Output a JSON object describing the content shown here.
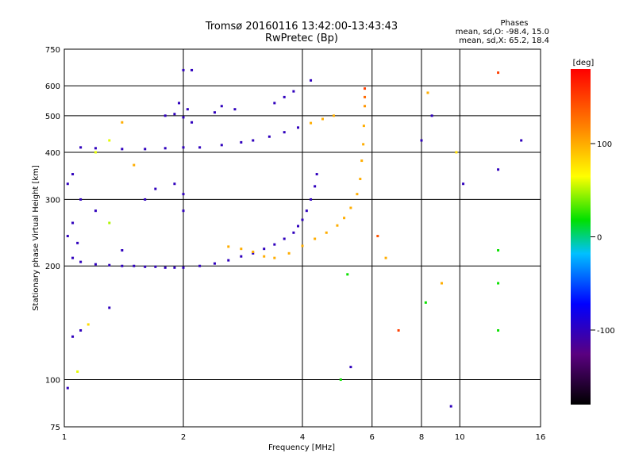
{
  "chart_data": {
    "type": "scatter",
    "title": "Tromsø 20160116 13:42:00-13:43:43",
    "subtitle": "RwPretec (Bp)",
    "xlabel": "Frequency [MHz]",
    "ylabel": "Stationary phase Virtual Height [km]",
    "xscale": "log",
    "yscale": "log",
    "xlim": [
      1,
      16
    ],
    "ylim": [
      75,
      750
    ],
    "x_ticks": [
      1,
      2,
      4,
      6,
      8,
      10,
      16
    ],
    "x_tick_labels": [
      "1",
      "2",
      "4",
      "6",
      "8",
      "10",
      "16"
    ],
    "y_ticks": [
      75,
      100,
      200,
      300,
      400,
      500,
      600,
      750
    ],
    "y_tick_labels": [
      "75",
      "100",
      "200",
      "300",
      "400",
      "500",
      "600",
      "750"
    ],
    "grid": true,
    "stats": {
      "heading": "Phases",
      "lines": [
        "mean, sd,O: -98.4, 15.0",
        "mean, sd,X: 65.2, 18.4"
      ]
    },
    "colorbar": {
      "label": "[deg]",
      "ticks": [
        100,
        0,
        -100
      ],
      "tick_labels": [
        "100",
        "0",
        "-100"
      ],
      "range": [
        -180,
        180
      ]
    },
    "series": [
      {
        "points": [
          {
            "x": 1.05,
            "y": 210,
            "c": -100
          },
          {
            "x": 1.1,
            "y": 205,
            "c": -100
          },
          {
            "x": 1.2,
            "y": 202,
            "c": -100
          },
          {
            "x": 1.3,
            "y": 201,
            "c": -100
          },
          {
            "x": 1.4,
            "y": 200,
            "c": -100
          },
          {
            "x": 1.5,
            "y": 200,
            "c": -100
          },
          {
            "x": 1.6,
            "y": 199,
            "c": -100
          },
          {
            "x": 1.7,
            "y": 199,
            "c": -100
          },
          {
            "x": 1.8,
            "y": 198,
            "c": -100
          },
          {
            "x": 1.9,
            "y": 198,
            "c": -100
          },
          {
            "x": 2.0,
            "y": 198,
            "c": -100
          },
          {
            "x": 2.2,
            "y": 200,
            "c": -100
          },
          {
            "x": 2.4,
            "y": 203,
            "c": -100
          },
          {
            "x": 2.6,
            "y": 207,
            "c": -100
          },
          {
            "x": 2.8,
            "y": 212,
            "c": -100
          },
          {
            "x": 3.0,
            "y": 216,
            "c": -100
          },
          {
            "x": 3.2,
            "y": 222,
            "c": -100
          },
          {
            "x": 3.4,
            "y": 228,
            "c": -100
          },
          {
            "x": 3.6,
            "y": 236,
            "c": -100
          },
          {
            "x": 3.8,
            "y": 245,
            "c": -100
          },
          {
            "x": 3.9,
            "y": 255,
            "c": -100
          },
          {
            "x": 4.0,
            "y": 265,
            "c": -100
          },
          {
            "x": 4.1,
            "y": 280,
            "c": -100
          },
          {
            "x": 4.2,
            "y": 300,
            "c": -100
          },
          {
            "x": 4.3,
            "y": 325,
            "c": -100
          },
          {
            "x": 4.35,
            "y": 350,
            "c": -100
          },
          {
            "x": 2.6,
            "y": 225,
            "c": 100
          },
          {
            "x": 2.8,
            "y": 222,
            "c": 100
          },
          {
            "x": 3.0,
            "y": 218,
            "c": 100
          },
          {
            "x": 3.2,
            "y": 212,
            "c": 100
          },
          {
            "x": 3.4,
            "y": 210,
            "c": 100
          },
          {
            "x": 3.7,
            "y": 216,
            "c": 100
          },
          {
            "x": 4.0,
            "y": 226,
            "c": 100
          },
          {
            "x": 4.3,
            "y": 236,
            "c": 100
          },
          {
            "x": 4.6,
            "y": 245,
            "c": 100
          },
          {
            "x": 4.9,
            "y": 256,
            "c": 100
          },
          {
            "x": 5.1,
            "y": 268,
            "c": 100
          },
          {
            "x": 5.3,
            "y": 285,
            "c": 100
          },
          {
            "x": 5.5,
            "y": 310,
            "c": 100
          },
          {
            "x": 5.6,
            "y": 340,
            "c": 100
          },
          {
            "x": 5.65,
            "y": 380,
            "c": 100
          },
          {
            "x": 5.7,
            "y": 420,
            "c": 100
          },
          {
            "x": 5.72,
            "y": 470,
            "c": 100
          },
          {
            "x": 5.75,
            "y": 530,
            "c": 110
          },
          {
            "x": 5.75,
            "y": 560,
            "c": 130
          },
          {
            "x": 5.75,
            "y": 590,
            "c": 150
          },
          {
            "x": 1.1,
            "y": 412,
            "c": -100
          },
          {
            "x": 1.2,
            "y": 410,
            "c": -100
          },
          {
            "x": 1.4,
            "y": 408,
            "c": -100
          },
          {
            "x": 1.6,
            "y": 408,
            "c": -100
          },
          {
            "x": 1.8,
            "y": 410,
            "c": -100
          },
          {
            "x": 2.0,
            "y": 412,
            "c": -100
          },
          {
            "x": 2.2,
            "y": 412,
            "c": -100
          },
          {
            "x": 2.5,
            "y": 418,
            "c": -100
          },
          {
            "x": 2.8,
            "y": 425,
            "c": -100
          },
          {
            "x": 3.0,
            "y": 430,
            "c": -100
          },
          {
            "x": 3.3,
            "y": 440,
            "c": -100
          },
          {
            "x": 3.6,
            "y": 452,
            "c": -100
          },
          {
            "x": 3.9,
            "y": 465,
            "c": -100
          },
          {
            "x": 4.2,
            "y": 478,
            "c": 100
          },
          {
            "x": 4.5,
            "y": 490,
            "c": 100
          },
          {
            "x": 1.8,
            "y": 500,
            "c": -100
          },
          {
            "x": 1.9,
            "y": 505,
            "c": -100
          },
          {
            "x": 2.0,
            "y": 495,
            "c": -100
          },
          {
            "x": 2.05,
            "y": 520,
            "c": -100
          },
          {
            "x": 2.1,
            "y": 480,
            "c": -100
          },
          {
            "x": 1.95,
            "y": 540,
            "c": -100
          },
          {
            "x": 2.4,
            "y": 510,
            "c": -100
          },
          {
            "x": 2.5,
            "y": 530,
            "c": -100
          },
          {
            "x": 2.7,
            "y": 520,
            "c": -100
          },
          {
            "x": 3.4,
            "y": 540,
            "c": -100
          },
          {
            "x": 3.6,
            "y": 560,
            "c": -100
          },
          {
            "x": 3.8,
            "y": 580,
            "c": -100
          },
          {
            "x": 4.2,
            "y": 620,
            "c": -100
          },
          {
            "x": 2.0,
            "y": 660,
            "c": -100
          },
          {
            "x": 2.1,
            "y": 660,
            "c": -100
          },
          {
            "x": 1.02,
            "y": 240,
            "c": -100
          },
          {
            "x": 1.05,
            "y": 260,
            "c": -100
          },
          {
            "x": 1.08,
            "y": 230,
            "c": -100
          },
          {
            "x": 1.1,
            "y": 300,
            "c": -100
          },
          {
            "x": 1.02,
            "y": 330,
            "c": -100
          },
          {
            "x": 1.05,
            "y": 350,
            "c": -100
          },
          {
            "x": 1.2,
            "y": 280,
            "c": -100
          },
          {
            "x": 1.3,
            "y": 260,
            "c": 50
          },
          {
            "x": 1.4,
            "y": 220,
            "c": -100
          },
          {
            "x": 1.6,
            "y": 300,
            "c": -100
          },
          {
            "x": 1.7,
            "y": 320,
            "c": -100
          },
          {
            "x": 1.9,
            "y": 330,
            "c": -100
          },
          {
            "x": 2.0,
            "y": 310,
            "c": -100
          },
          {
            "x": 2.0,
            "y": 280,
            "c": -100
          },
          {
            "x": 1.5,
            "y": 370,
            "c": 100
          },
          {
            "x": 1.3,
            "y": 430,
            "c": 60
          },
          {
            "x": 1.2,
            "y": 400,
            "c": 60
          },
          {
            "x": 1.4,
            "y": 480,
            "c": 100
          },
          {
            "x": 1.05,
            "y": 130,
            "c": -100
          },
          {
            "x": 1.1,
            "y": 135,
            "c": -100
          },
          {
            "x": 1.15,
            "y": 140,
            "c": 80
          },
          {
            "x": 1.02,
            "y": 95,
            "c": -100
          },
          {
            "x": 1.08,
            "y": 105,
            "c": 60
          },
          {
            "x": 1.3,
            "y": 155,
            "c": -100
          },
          {
            "x": 5.2,
            "y": 190,
            "c": 20
          },
          {
            "x": 5.0,
            "y": 100,
            "c": 20
          },
          {
            "x": 5.3,
            "y": 108,
            "c": -100
          },
          {
            "x": 6.2,
            "y": 240,
            "c": 140
          },
          {
            "x": 6.5,
            "y": 210,
            "c": 100
          },
          {
            "x": 7.0,
            "y": 135,
            "c": 150
          },
          {
            "x": 8.0,
            "y": 430,
            "c": -100
          },
          {
            "x": 8.2,
            "y": 160,
            "c": 20
          },
          {
            "x": 9.0,
            "y": 180,
            "c": 100
          },
          {
            "x": 8.5,
            "y": 500,
            "c": -100
          },
          {
            "x": 9.8,
            "y": 400,
            "c": 80
          },
          {
            "x": 10.2,
            "y": 330,
            "c": -100
          },
          {
            "x": 12.5,
            "y": 360,
            "c": -100
          },
          {
            "x": 12.5,
            "y": 220,
            "c": 20
          },
          {
            "x": 12.5,
            "y": 180,
            "c": 20
          },
          {
            "x": 12.5,
            "y": 135,
            "c": 20
          },
          {
            "x": 12.5,
            "y": 650,
            "c": 150
          },
          {
            "x": 14.3,
            "y": 430,
            "c": -100
          },
          {
            "x": 9.5,
            "y": 85,
            "c": -100
          },
          {
            "x": 8.3,
            "y": 575,
            "c": 100
          },
          {
            "x": 4.8,
            "y": 500,
            "c": 100
          }
        ]
      }
    ]
  }
}
